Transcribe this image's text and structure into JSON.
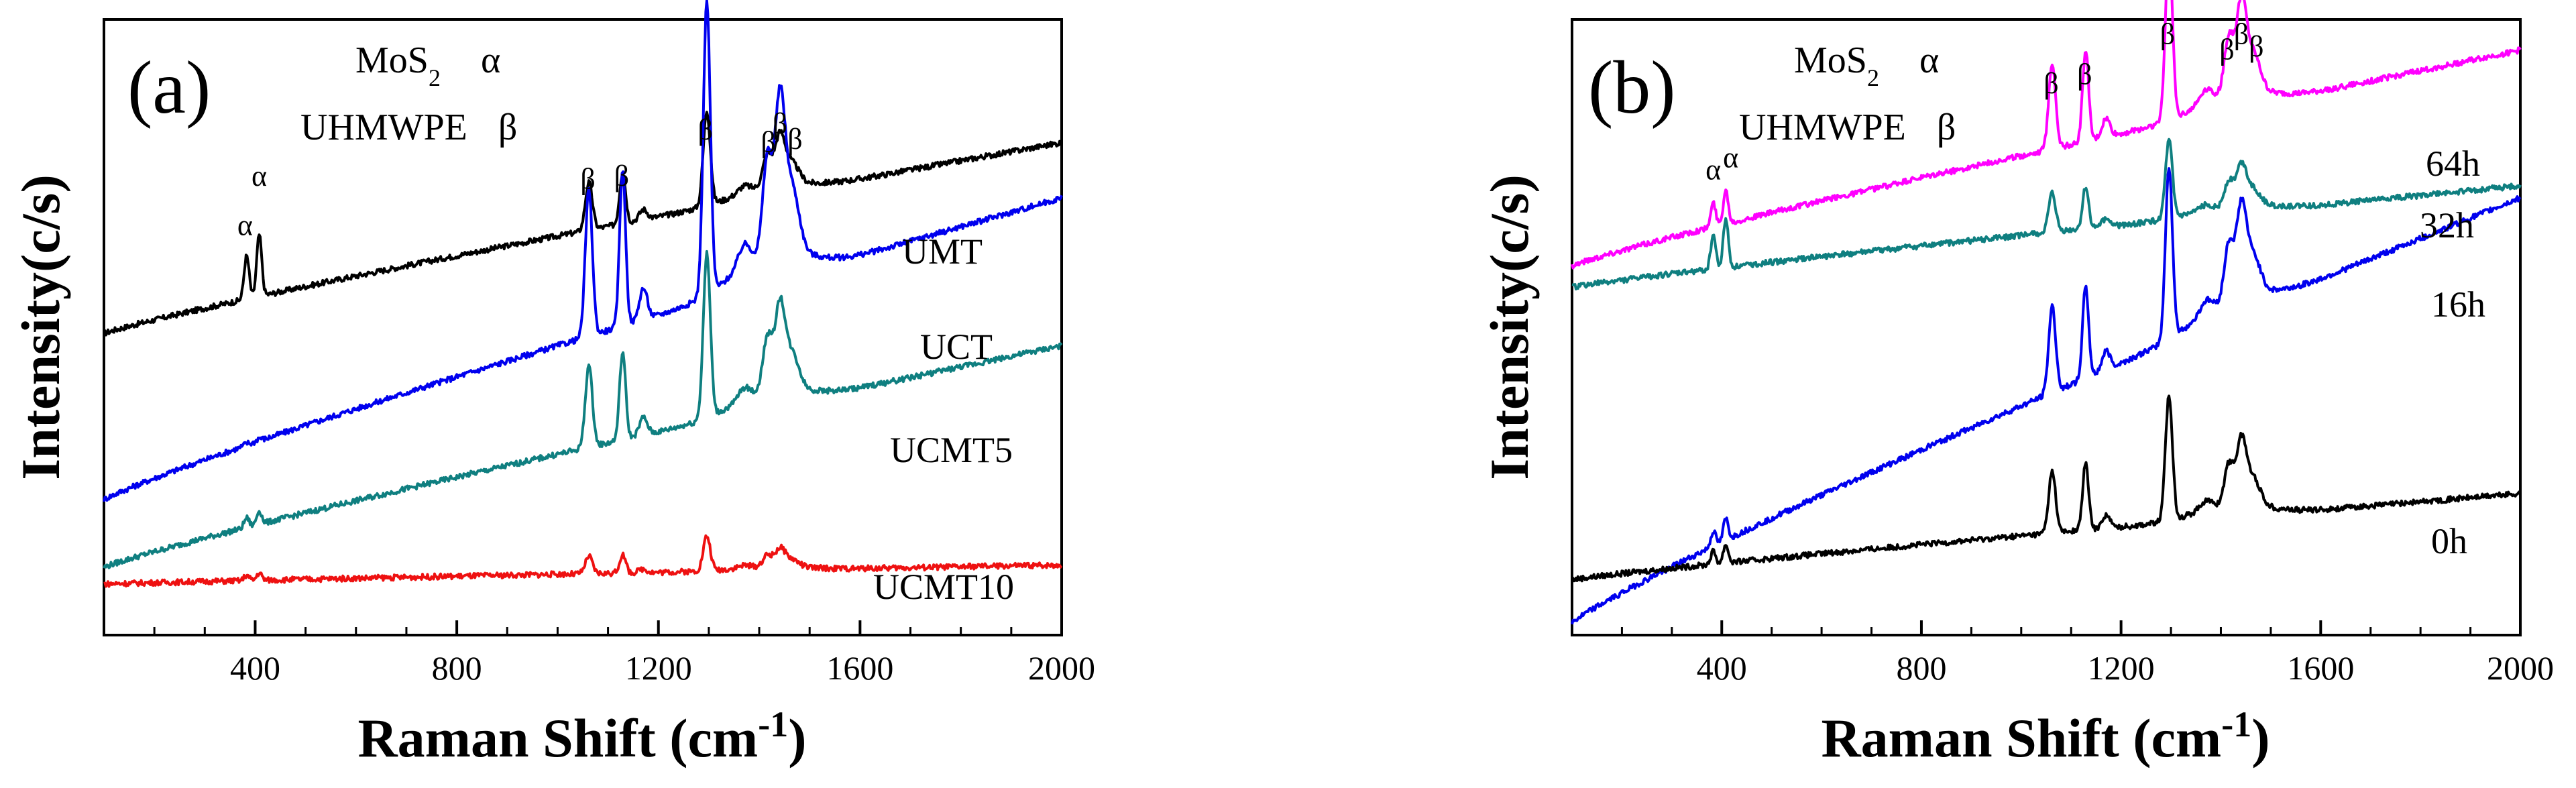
{
  "chart_data": [
    {
      "type": "line",
      "panel_label": "(a)",
      "xlabel": "Raman Shift (cm",
      "xlabel_sup": "-1",
      "xlabel_end": ")",
      "ylabel": "Intensity(c/s)",
      "xlim": [
        100,
        2000
      ],
      "xticks": [
        400,
        800,
        1200,
        1600,
        2000
      ],
      "xticks_minor_step": 100,
      "ylim": [
        0,
        100
      ],
      "legend": [
        {
          "name": "MoS",
          "sub": "2",
          "symbol": "α"
        },
        {
          "name": "UHMWPE",
          "sub": "",
          "symbol": "β"
        }
      ],
      "series": [
        {
          "name": "UMT",
          "color": "#000000",
          "base_start": 49,
          "base_end": 80,
          "amp_scale": 0.55,
          "alpha_scale": 1.0
        },
        {
          "name": "UCT",
          "color": "#0000ee",
          "base_start": 22,
          "base_end": 71,
          "amp_scale": 1.7,
          "alpha_scale": 0.05
        },
        {
          "name": "UCMT5",
          "color": "#0f7f80",
          "base_start": 11,
          "base_end": 47,
          "amp_scale": 0.95,
          "alpha_scale": 0.22
        },
        {
          "name": "UCMT10",
          "color": "#ee1111",
          "base_start": 8.3,
          "base_end": 11.4,
          "amp_scale": 0.2,
          "alpha_scale": 0.12
        }
      ],
      "peak_annotations": [
        {
          "text": "α",
          "x": 380,
          "y": 65
        },
        {
          "text": "α",
          "x": 408,
          "y": 73
        },
        {
          "text": "β",
          "x": 1060,
          "y": 72.5
        },
        {
          "text": "β",
          "x": 1127,
          "y": 73
        },
        {
          "text": "β",
          "x": 1293,
          "y": 80.5
        },
        {
          "text": "β",
          "x": 1418,
          "y": 78.5
        },
        {
          "text": "β",
          "x": 1441,
          "y": 81.5
        },
        {
          "text": "β",
          "x": 1471,
          "y": 79
        }
      ]
    },
    {
      "type": "line",
      "panel_label": "(b)",
      "xlabel": "Raman Shift (cm",
      "xlabel_sup": "-1",
      "xlabel_end": ")",
      "ylabel": "Intensity(c/s)",
      "xlim": [
        100,
        2000
      ],
      "xticks": [
        400,
        800,
        1200,
        1600,
        2000
      ],
      "xticks_minor_step": 100,
      "ylim": [
        0,
        100
      ],
      "legend": [
        {
          "name": "MoS",
          "sub": "2",
          "symbol": "α"
        },
        {
          "name": "UHMWPE",
          "sub": "",
          "symbol": "β"
        }
      ],
      "series": [
        {
          "name": "64h",
          "color": "#ff00ff",
          "base_start": 60,
          "base_end": 95,
          "amp_scale": 1.0,
          "alpha_scale": 0.55
        },
        {
          "name": "32h",
          "color": "#0f7f80",
          "base_start": 56.5,
          "base_end": 73,
          "amp_scale": 0.45,
          "alpha_scale": 0.8
        },
        {
          "name": "16h",
          "color": "#0000ee",
          "base_start": 2,
          "base_end": 71,
          "amp_scale": 1.0,
          "alpha_scale": 0.35
        },
        {
          "name": "0h",
          "color": "#000000",
          "base_start": 9,
          "base_end": 23,
          "amp_scale": 0.72,
          "alpha_scale": 0.3
        }
      ],
      "peak_annotations": [
        {
          "text": "α",
          "x": 383,
          "y": 74
        },
        {
          "text": "α",
          "x": 418,
          "y": 76
        },
        {
          "text": "β",
          "x": 1060,
          "y": 88
        },
        {
          "text": "β",
          "x": 1127,
          "y": 89.5
        },
        {
          "text": "β",
          "x": 1293,
          "y": 96
        },
        {
          "text": "β",
          "x": 1412,
          "y": 93.5
        },
        {
          "text": "β",
          "x": 1441,
          "y": 96
        },
        {
          "text": "β",
          "x": 1471,
          "y": 94
        }
      ]
    }
  ]
}
